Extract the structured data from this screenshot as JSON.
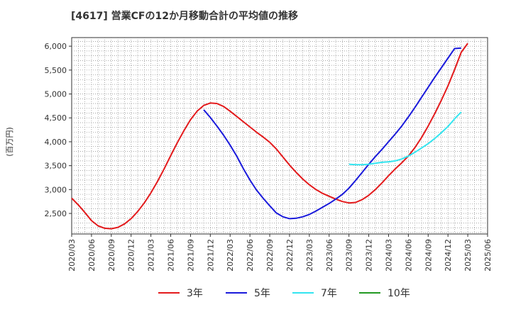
{
  "chart_data": {
    "type": "line",
    "title": "[4617]  営業CFの12か月移動合計の平均値の推移",
    "ylabel": "(百万円)",
    "xlabel": "",
    "ylim": [
      2070,
      6180
    ],
    "yticks": [
      2500,
      3000,
      3500,
      4000,
      4500,
      5000,
      5500,
      6000
    ],
    "ytick_labels": [
      "2,500",
      "3,000",
      "3,500",
      "4,000",
      "4,500",
      "5,000",
      "5,500",
      "6,000"
    ],
    "xlim": [
      "2020-03",
      "2025-06"
    ],
    "xticks": [
      "2020/03",
      "2020/06",
      "2020/09",
      "2020/12",
      "2021/03",
      "2021/06",
      "2021/09",
      "2021/12",
      "2022/03",
      "2022/06",
      "2022/09",
      "2022/12",
      "2023/03",
      "2023/06",
      "2023/09",
      "2023/12",
      "2024/03",
      "2024/06",
      "2024/09",
      "2024/12",
      "2025/03",
      "2025/06"
    ],
    "grid": true,
    "legend_position": "bottom",
    "series": [
      {
        "name": "3年",
        "color": "#e31a1c",
        "points": [
          [
            "2020-03",
            2820
          ],
          [
            "2020-04",
            2680
          ],
          [
            "2020-05",
            2520
          ],
          [
            "2020-06",
            2350
          ],
          [
            "2020-07",
            2240
          ],
          [
            "2020-08",
            2190
          ],
          [
            "2020-09",
            2180
          ],
          [
            "2020-10",
            2210
          ],
          [
            "2020-11",
            2280
          ],
          [
            "2020-12",
            2390
          ],
          [
            "2021-01",
            2540
          ],
          [
            "2021-02",
            2720
          ],
          [
            "2021-03",
            2930
          ],
          [
            "2021-04",
            3170
          ],
          [
            "2021-05",
            3430
          ],
          [
            "2021-06",
            3710
          ],
          [
            "2021-07",
            3980
          ],
          [
            "2021-08",
            4230
          ],
          [
            "2021-09",
            4460
          ],
          [
            "2021-10",
            4640
          ],
          [
            "2021-11",
            4760
          ],
          [
            "2021-12",
            4810
          ],
          [
            "2022-01",
            4800
          ],
          [
            "2022-02",
            4740
          ],
          [
            "2022-03",
            4640
          ],
          [
            "2022-04",
            4530
          ],
          [
            "2022-05",
            4420
          ],
          [
            "2022-06",
            4310
          ],
          [
            "2022-07",
            4200
          ],
          [
            "2022-08",
            4100
          ],
          [
            "2022-09",
            3990
          ],
          [
            "2022-10",
            3850
          ],
          [
            "2022-11",
            3680
          ],
          [
            "2022-12",
            3510
          ],
          [
            "2023-01",
            3360
          ],
          [
            "2023-02",
            3220
          ],
          [
            "2023-03",
            3100
          ],
          [
            "2023-04",
            3000
          ],
          [
            "2023-05",
            2920
          ],
          [
            "2023-06",
            2860
          ],
          [
            "2023-07",
            2800
          ],
          [
            "2023-08",
            2750
          ],
          [
            "2023-09",
            2720
          ],
          [
            "2023-10",
            2730
          ],
          [
            "2023-11",
            2790
          ],
          [
            "2023-12",
            2880
          ],
          [
            "2024-01",
            3000
          ],
          [
            "2024-02",
            3140
          ],
          [
            "2024-03",
            3290
          ],
          [
            "2024-04",
            3430
          ],
          [
            "2024-05",
            3560
          ],
          [
            "2024-06",
            3700
          ],
          [
            "2024-07",
            3880
          ],
          [
            "2024-08",
            4090
          ],
          [
            "2024-09",
            4330
          ],
          [
            "2024-10",
            4590
          ],
          [
            "2024-11",
            4870
          ],
          [
            "2024-12",
            5170
          ],
          [
            "2025-01",
            5510
          ],
          [
            "2025-02",
            5870
          ],
          [
            "2025-03",
            6060
          ]
        ]
      },
      {
        "name": "5年",
        "color": "#1a1adb",
        "points": [
          [
            "2021-11",
            4670
          ],
          [
            "2021-12",
            4510
          ],
          [
            "2022-01",
            4330
          ],
          [
            "2022-02",
            4140
          ],
          [
            "2022-03",
            3930
          ],
          [
            "2022-04",
            3700
          ],
          [
            "2022-05",
            3440
          ],
          [
            "2022-06",
            3200
          ],
          [
            "2022-07",
            2990
          ],
          [
            "2022-08",
            2820
          ],
          [
            "2022-09",
            2660
          ],
          [
            "2022-10",
            2510
          ],
          [
            "2022-11",
            2430
          ],
          [
            "2022-12",
            2390
          ],
          [
            "2023-01",
            2400
          ],
          [
            "2023-02",
            2430
          ],
          [
            "2023-03",
            2480
          ],
          [
            "2023-04",
            2550
          ],
          [
            "2023-05",
            2630
          ],
          [
            "2023-06",
            2710
          ],
          [
            "2023-07",
            2800
          ],
          [
            "2023-08",
            2900
          ],
          [
            "2023-09",
            3030
          ],
          [
            "2023-10",
            3190
          ],
          [
            "2023-11",
            3360
          ],
          [
            "2023-12",
            3530
          ],
          [
            "2024-01",
            3690
          ],
          [
            "2024-02",
            3840
          ],
          [
            "2024-03",
            4000
          ],
          [
            "2024-04",
            4160
          ],
          [
            "2024-05",
            4330
          ],
          [
            "2024-06",
            4520
          ],
          [
            "2024-07",
            4720
          ],
          [
            "2024-08",
            4930
          ],
          [
            "2024-09",
            5140
          ],
          [
            "2024-10",
            5350
          ],
          [
            "2024-11",
            5550
          ],
          [
            "2024-12",
            5750
          ],
          [
            "2025-01",
            5950
          ],
          [
            "2025-02",
            5960
          ]
        ]
      },
      {
        "name": "7年",
        "color": "#33e5f0",
        "points": [
          [
            "2023-09",
            3530
          ],
          [
            "2023-10",
            3520
          ],
          [
            "2023-11",
            3520
          ],
          [
            "2023-12",
            3530
          ],
          [
            "2024-01",
            3550
          ],
          [
            "2024-02",
            3570
          ],
          [
            "2024-03",
            3580
          ],
          [
            "2024-04",
            3600
          ],
          [
            "2024-05",
            3640
          ],
          [
            "2024-06",
            3700
          ],
          [
            "2024-07",
            3780
          ],
          [
            "2024-08",
            3870
          ],
          [
            "2024-09",
            3960
          ],
          [
            "2024-10",
            4070
          ],
          [
            "2024-11",
            4190
          ],
          [
            "2024-12",
            4320
          ],
          [
            "2025-01",
            4480
          ],
          [
            "2025-02",
            4620
          ]
        ]
      },
      {
        "name": "10年",
        "color": "#229922",
        "points": []
      }
    ]
  }
}
